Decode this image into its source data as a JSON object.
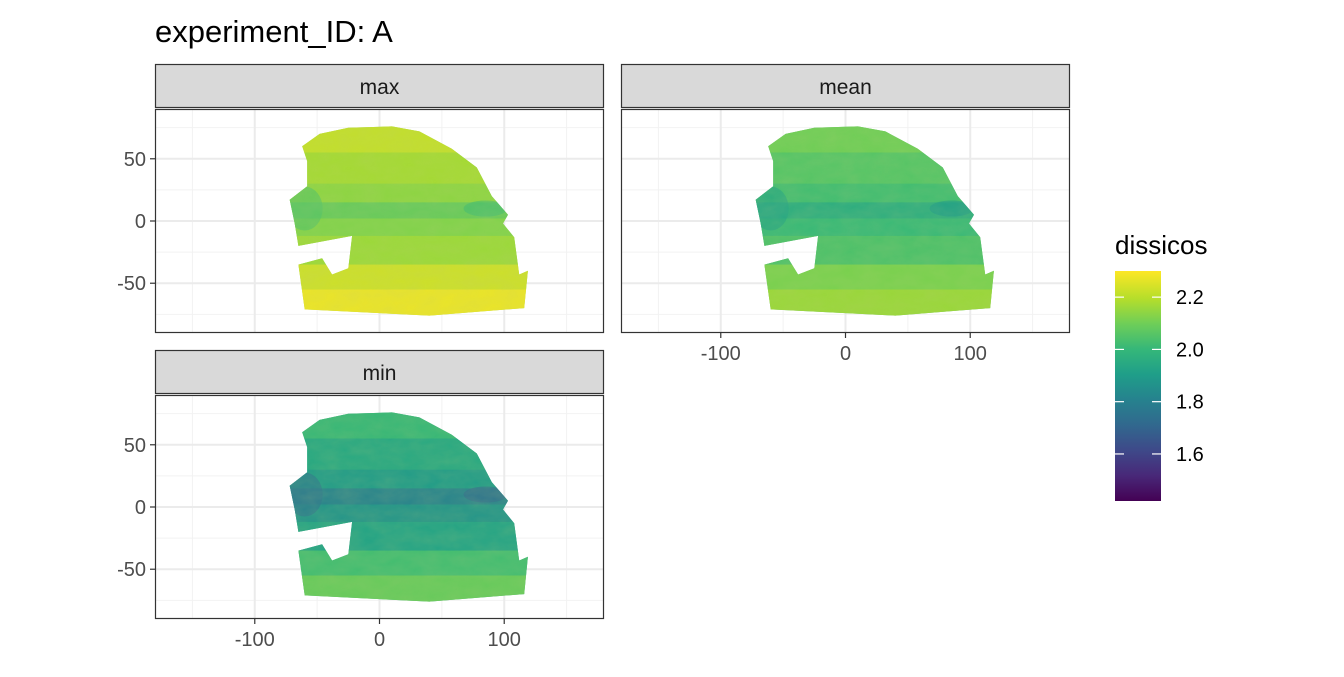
{
  "chart_data": {
    "type": "heatmap",
    "title": "experiment_ID: A",
    "xlabel": "",
    "ylabel": "",
    "xlim": [
      -180,
      180
    ],
    "ylim": [
      -90,
      90
    ],
    "x_ticks": [
      -100,
      0,
      100
    ],
    "y_ticks": [
      50,
      0,
      -50
    ],
    "facets": [
      {
        "label": "max",
        "mean_value": 2.16,
        "range": [
          2.03,
          2.31
        ]
      },
      {
        "label": "mean",
        "mean_value": 2.05,
        "range": [
          1.9,
          2.2
        ]
      },
      {
        "label": "min",
        "mean_value": 1.96,
        "range": [
          1.72,
          2.13
        ]
      }
    ],
    "legend": {
      "title": "dissicos",
      "placement": "right",
      "range": [
        1.42,
        2.3
      ],
      "ticks": [
        2.2,
        2.0,
        1.8,
        1.6
      ],
      "colormap": [
        "#440154",
        "#482878",
        "#3e4989",
        "#31688e",
        "#26828e",
        "#1f9e89",
        "#35b779",
        "#6ece58",
        "#b5de2b",
        "#fde725"
      ]
    },
    "grid": true
  }
}
